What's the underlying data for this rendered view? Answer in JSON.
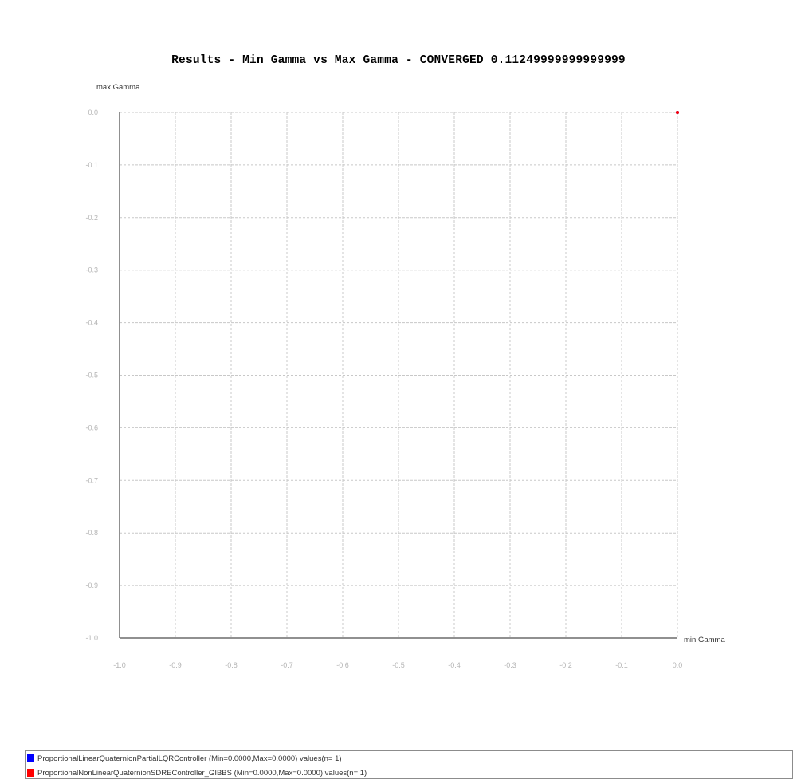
{
  "chart_data": {
    "type": "scatter",
    "title": "Results - Min Gamma vs Max Gamma - CONVERGED 0.11249999999999999",
    "xlabel": "min Gamma",
    "ylabel": "max Gamma",
    "xlim": [
      -1.0,
      0.0
    ],
    "ylim": [
      -1.0,
      0.0
    ],
    "x_ticks": [
      "-1.0",
      "-0.9",
      "-0.8",
      "-0.7",
      "-0.6",
      "-0.5",
      "-0.4",
      "-0.3",
      "-0.2",
      "-0.1",
      "0.0"
    ],
    "y_ticks": [
      "0.0",
      "-0.1",
      "-0.2",
      "-0.3",
      "-0.4",
      "-0.5",
      "-0.6",
      "-0.7",
      "-0.8",
      "-0.9",
      "-1.0"
    ],
    "grid": true,
    "legend_position": "bottom",
    "series": [
      {
        "name": "ProportionalLinearQuaternionPartialLQRController",
        "legend_label": "ProportionalLinearQuaternionPartialLQRController (Min=0.0000,Max=0.0000) values(n= 1)",
        "color": "#0000ff",
        "points": [
          {
            "x": 0.0,
            "y": 0.0
          }
        ]
      },
      {
        "name": "ProportionalNonLinearQuaternionSDREController_GIBBS",
        "legend_label": "ProportionalNonLinearQuaternionSDREController_GIBBS (Min=0.0000,Max=0.0000) values(n= 1)",
        "color": "#ff0000",
        "points": [
          {
            "x": 0.0,
            "y": 0.0
          }
        ]
      }
    ]
  }
}
